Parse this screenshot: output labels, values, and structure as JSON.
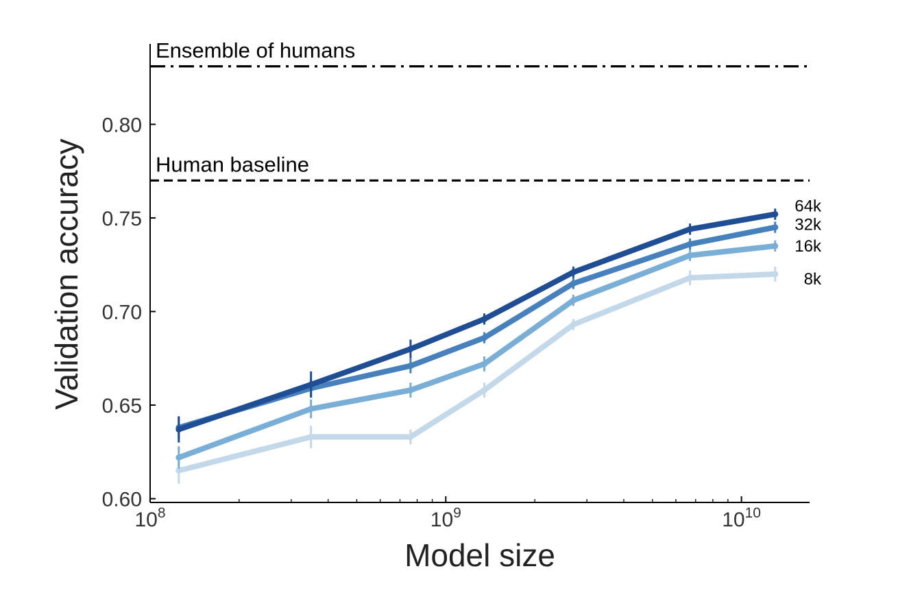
{
  "chart_data": {
    "type": "line",
    "xlabel": "Model size",
    "ylabel": "Validation accuracy",
    "x_scale": "log",
    "xlim": [
      100000000.0,
      17000000000.0
    ],
    "ylim": [
      0.598,
      0.843
    ],
    "x_ticks": [
      {
        "value": 100000000.0,
        "base": "10",
        "exp": "8"
      },
      {
        "value": 1000000000.0,
        "base": "10",
        "exp": "9"
      },
      {
        "value": 10000000000.0,
        "base": "10",
        "exp": "10"
      }
    ],
    "y_ticks": [
      {
        "value": 0.6,
        "label": "0.60"
      },
      {
        "value": 0.65,
        "label": "0.65"
      },
      {
        "value": 0.7,
        "label": "0.70"
      },
      {
        "value": 0.75,
        "label": "0.75"
      },
      {
        "value": 0.8,
        "label": "0.80"
      }
    ],
    "x": [
      125000000.0,
      350000000.0,
      760000000.0,
      1350000000.0,
      2700000000.0,
      6700000000.0,
      13000000000.0
    ],
    "reference_lines": [
      {
        "name": "Ensemble of humans",
        "value": 0.831,
        "style": "dashdot",
        "color": "#000000"
      },
      {
        "name": "Human baseline",
        "value": 0.77,
        "style": "dashed",
        "color": "#000000"
      }
    ],
    "series": [
      {
        "name": "8k",
        "color": "#c3d8e8",
        "values": [
          0.615,
          0.633,
          0.633,
          0.658,
          0.693,
          0.718,
          0.72
        ],
        "err": [
          0.007,
          0.006,
          0.004,
          0.004,
          0.003,
          0.004,
          0.004
        ]
      },
      {
        "name": "16k",
        "color": "#79aed6",
        "values": [
          0.622,
          0.648,
          0.658,
          0.672,
          0.706,
          0.73,
          0.735
        ],
        "err": [
          0.006,
          0.005,
          0.004,
          0.004,
          0.003,
          0.003,
          0.003
        ]
      },
      {
        "name": "32k",
        "color": "#4781bd",
        "values": [
          0.638,
          0.659,
          0.671,
          0.686,
          0.715,
          0.736,
          0.745
        ],
        "err": [
          0.006,
          0.005,
          0.004,
          0.003,
          0.003,
          0.003,
          0.003
        ]
      },
      {
        "name": "64k",
        "color": "#1f4e95",
        "values": [
          0.637,
          0.661,
          0.68,
          0.696,
          0.721,
          0.744,
          0.752
        ],
        "err": [
          0.007,
          0.007,
          0.005,
          0.003,
          0.003,
          0.003,
          0.003
        ]
      }
    ]
  }
}
